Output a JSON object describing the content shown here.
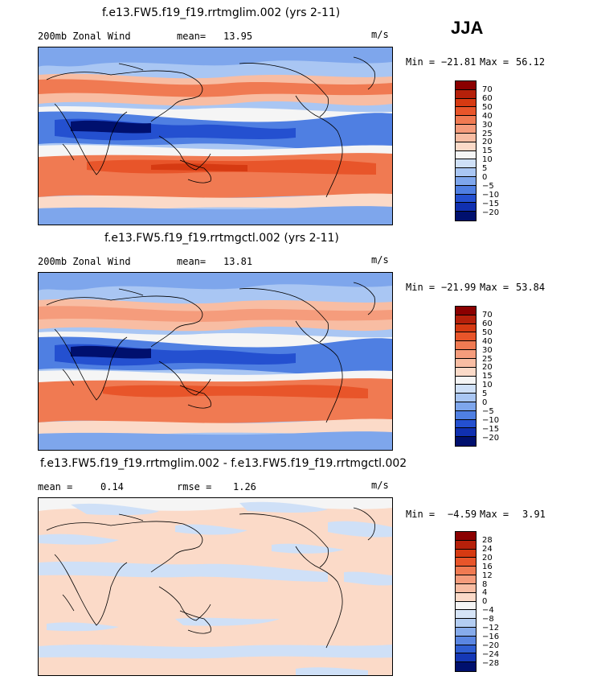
{
  "season": "JJA",
  "panels": [
    {
      "title": "f.e13.FW5.f19_f19.rrtmglim.002 (yrs 2-11)",
      "variable": "200mb Zonal Wind",
      "stat_left": "mean=",
      "stat_left_value": "13.95",
      "units": "m/s",
      "min_label": "Min =",
      "min_value": "−21.81",
      "max_label": "Max =",
      "max_value": "56.12",
      "colorbar_labels": [
        "70",
        "60",
        "50",
        "40",
        "30",
        "25",
        "20",
        "15",
        "10",
        "5",
        "0",
        "−5",
        "−10",
        "−15",
        "−20"
      ]
    },
    {
      "title": "f.e13.FW5.f19_f19.rrtmgctl.002 (yrs 2-11)",
      "variable": "200mb Zonal Wind",
      "stat_left": "mean=",
      "stat_left_value": "13.81",
      "units": "m/s",
      "min_label": "Min =",
      "min_value": "−21.99",
      "max_label": "Max =",
      "max_value": "53.84",
      "colorbar_labels": [
        "70",
        "60",
        "50",
        "40",
        "30",
        "25",
        "20",
        "15",
        "10",
        "5",
        "0",
        "−5",
        "−10",
        "−15",
        "−20"
      ]
    },
    {
      "title": "f.e13.FW5.f19_f19.rrtmglim.002 - f.e13.FW5.f19_f19.rrtmgctl.002",
      "stat_left": "mean =",
      "stat_left_value": "0.14",
      "stat_right": "rmse =",
      "stat_right_value": "1.26",
      "units": "m/s",
      "min_label": "Min =",
      "min_value": "−4.59",
      "max_label": "Max =",
      "max_value": "3.91",
      "colorbar_labels": [
        "28",
        "24",
        "20",
        "16",
        "12",
        "8",
        "4",
        "0",
        "−4",
        "−8",
        "−12",
        "−16",
        "−20",
        "−24",
        "−28"
      ]
    }
  ],
  "colors": {
    "field_scale": [
      "#8b0000",
      "#b5200a",
      "#d63a12",
      "#e8552a",
      "#f07a52",
      "#f59c7c",
      "#f8bda3",
      "#fbdac8",
      "#f5f5f5",
      "#cfe0f7",
      "#a9c6f3",
      "#7ea6ec",
      "#4f7fe2",
      "#2450d0",
      "#1030b0",
      "#00106e"
    ],
    "diff_scale": [
      "#8b0000",
      "#b5200a",
      "#d63a12",
      "#e8552a",
      "#f07a52",
      "#f59c7c",
      "#f8bda3",
      "#fbdac8",
      "#f5f5f5",
      "#d6e4f7",
      "#b3cdf2",
      "#86abeb",
      "#5a86e2",
      "#2f5ed2",
      "#1538b6",
      "#00106e"
    ],
    "coast": "#000000"
  }
}
